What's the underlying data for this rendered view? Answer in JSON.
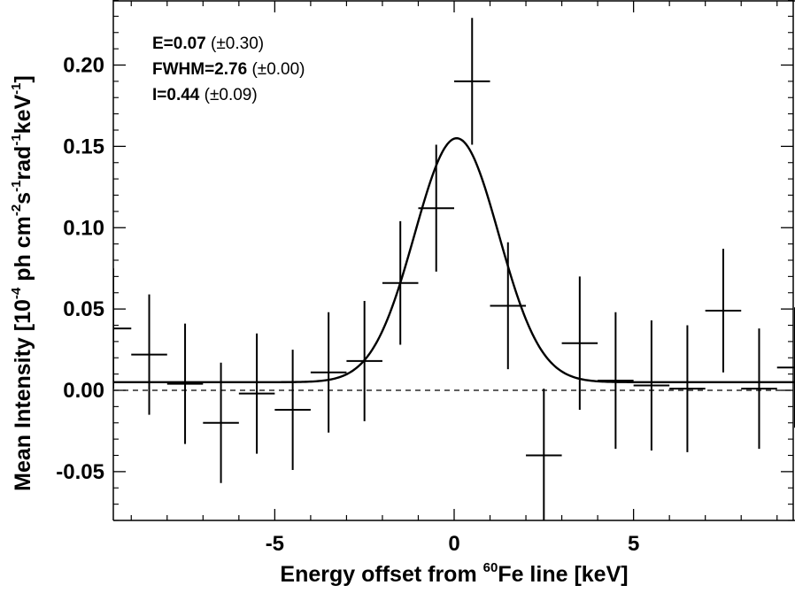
{
  "chart_data": {
    "type": "scatter",
    "xlabel_parts": {
      "before": "Energy offset from ",
      "sup": "60",
      "after": "Fe line [keV]"
    },
    "ylabel_parts": [
      {
        "t": "Mean Intensity [10"
      },
      {
        "sup": "-4"
      },
      {
        "t": " ph cm"
      },
      {
        "sup": "-2"
      },
      {
        "t": "s"
      },
      {
        "sup": "-1"
      },
      {
        "t": "rad"
      },
      {
        "sup": "-1"
      },
      {
        "t": "keV"
      },
      {
        "sup": "-1"
      },
      {
        "t": "]"
      }
    ],
    "xlim": [
      -9.5,
      9.5
    ],
    "ylim": [
      -0.08,
      0.24
    ],
    "x_ticks": [
      -5,
      0,
      5
    ],
    "x_tick_labels": [
      "-5",
      "0",
      "5"
    ],
    "y_ticks": [
      -0.05,
      0.0,
      0.05,
      0.1,
      0.15,
      0.2
    ],
    "y_tick_labels": [
      "-0.05",
      "0.00",
      "0.05",
      "0.10",
      "0.15",
      "0.20"
    ],
    "bin_halfwidth": 0.5,
    "series": [
      {
        "kind": "errorbar",
        "x": [
          -9.5,
          -8.5,
          -7.5,
          -6.5,
          -5.5,
          -4.5,
          -3.5,
          -2.5,
          -1.5,
          -0.5,
          0.5,
          1.5,
          2.5,
          3.5,
          4.5,
          5.5,
          6.5,
          7.5,
          8.5,
          9.5
        ],
        "y": [
          0.038,
          0.022,
          0.004,
          -0.02,
          -0.002,
          -0.012,
          0.011,
          0.018,
          0.066,
          0.112,
          0.19,
          0.052,
          -0.04,
          0.029,
          0.006,
          0.003,
          0.001,
          0.049,
          0.001,
          0.014
        ],
        "yerr": [
          0.037,
          0.037,
          0.037,
          0.037,
          0.037,
          0.037,
          0.037,
          0.037,
          0.038,
          0.039,
          0.039,
          0.039,
          0.041,
          0.041,
          0.042,
          0.04,
          0.039,
          0.038,
          0.037,
          0.037
        ]
      },
      {
        "kind": "gaussian-fit",
        "center": 0.07,
        "fwhm": 2.76,
        "peak": 0.15,
        "baseline": 0.005
      },
      {
        "kind": "zero-line",
        "y": 0.0
      }
    ],
    "annotations": [
      {
        "bold": "E=0.07",
        "rest": " (±0.30)"
      },
      {
        "bold": "FWHM=2.76",
        "rest": " (±0.00)"
      },
      {
        "bold": "I=0.44",
        "rest": " (±0.09)"
      }
    ]
  }
}
